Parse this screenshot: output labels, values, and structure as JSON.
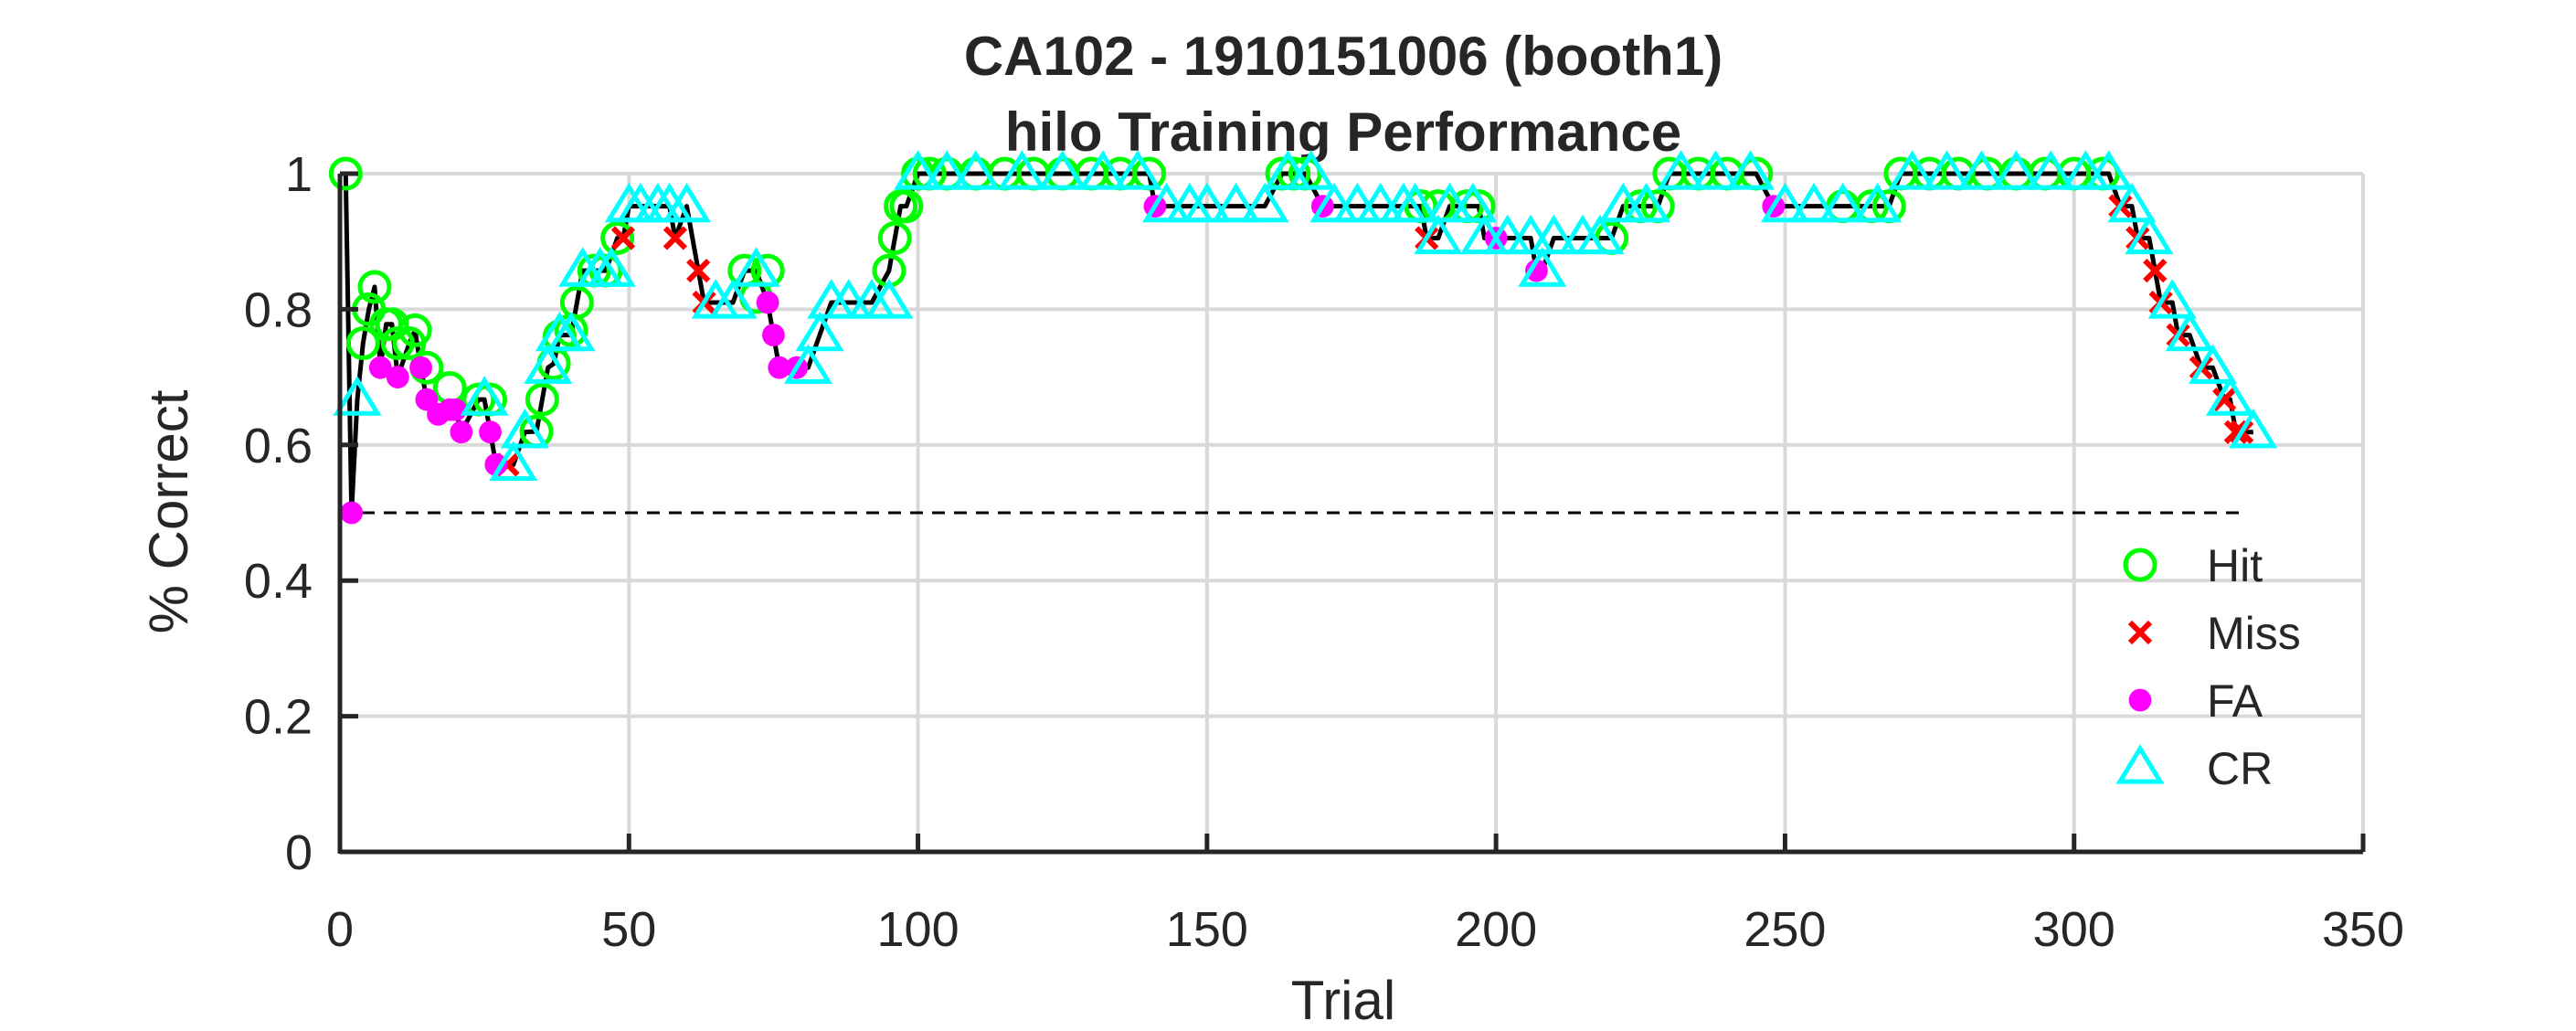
{
  "chart_data": {
    "type": "scatter",
    "title": "CA102 - 1910151006 (booth1)",
    "subtitle": "hilo Training Performance",
    "xlabel": "Trial",
    "ylabel": "% Correct",
    "xlim": [
      0,
      350
    ],
    "ylim": [
      0,
      1
    ],
    "xticks": [
      "0",
      "50",
      "100",
      "150",
      "200",
      "250",
      "300",
      "350"
    ],
    "yticks": [
      "0",
      "0.2",
      "0.4",
      "0.6",
      "0.8",
      "1"
    ],
    "grid": true,
    "legend_position": "lower-right",
    "chance_line": {
      "y": 0.5,
      "x": [
        0,
        330
      ],
      "style": "dashed"
    },
    "series": [
      {
        "name": "Hit",
        "marker": "circle-open",
        "color": "#00ff00",
        "x": [
          1,
          4,
          5,
          6,
          8,
          9,
          10,
          12,
          13,
          15,
          19,
          24,
          26,
          34,
          35,
          37,
          38,
          40,
          41,
          44,
          46,
          48,
          70,
          72,
          74,
          95,
          96,
          97,
          98,
          100,
          102,
          105,
          110,
          115,
          120,
          125,
          130,
          135,
          140,
          163,
          165,
          167,
          187,
          190,
          195,
          197,
          220,
          225,
          228,
          230,
          235,
          240,
          245,
          260,
          265,
          268,
          270,
          275,
          280,
          285,
          290,
          295,
          300,
          305
        ],
        "y": [
          1.0,
          0.75,
          0.8,
          0.833,
          0.778,
          0.778,
          0.75,
          0.75,
          0.769,
          0.714,
          0.684,
          0.667,
          0.667,
          0.62,
          0.667,
          0.72,
          0.76,
          0.769,
          0.81,
          0.857,
          0.857,
          0.905,
          0.857,
          0.818,
          0.857,
          0.857,
          0.905,
          0.952,
          0.952,
          1.0,
          1.0,
          1.0,
          1.0,
          1.0,
          1.0,
          1.0,
          1.0,
          1.0,
          1.0,
          1.0,
          1.0,
          1.0,
          0.952,
          0.952,
          0.952,
          0.952,
          0.905,
          0.952,
          0.952,
          1.0,
          1.0,
          1.0,
          1.0,
          0.952,
          0.952,
          0.952,
          1.0,
          1.0,
          1.0,
          1.0,
          1.0,
          1.0,
          1.0,
          1.0
        ]
      },
      {
        "name": "Miss",
        "marker": "x",
        "color": "#ff0000",
        "x": [
          29,
          49,
          58,
          62,
          63,
          188,
          308,
          311,
          314,
          315,
          318,
          322,
          326,
          328,
          329
        ],
        "y": [
          0.571,
          0.905,
          0.905,
          0.857,
          0.81,
          0.905,
          0.952,
          0.905,
          0.857,
          0.81,
          0.762,
          0.714,
          0.667,
          0.619,
          0.619
        ]
      },
      {
        "name": "FA",
        "marker": "dot",
        "color": "#ff00ff",
        "x": [
          2,
          7,
          10,
          14,
          15,
          17,
          19,
          20,
          21,
          26,
          27,
          74,
          75,
          76,
          79,
          141,
          170,
          200,
          207,
          248
        ],
        "y": [
          0.5,
          0.714,
          0.7,
          0.714,
          0.667,
          0.645,
          0.652,
          0.652,
          0.619,
          0.619,
          0.571,
          0.81,
          0.762,
          0.714,
          0.714,
          0.952,
          0.952,
          0.905,
          0.857,
          0.952
        ]
      },
      {
        "name": "CR",
        "marker": "triangle-open",
        "color": "#00ffff",
        "x": [
          3,
          25,
          30,
          32,
          36,
          38,
          40,
          42,
          45,
          47,
          50,
          52,
          55,
          57,
          60,
          65,
          68,
          72,
          81,
          83,
          85,
          88,
          92,
          95,
          100,
          105,
          110,
          118,
          125,
          132,
          138,
          143,
          147,
          150,
          155,
          160,
          164,
          168,
          172,
          176,
          180,
          184,
          186,
          190,
          192,
          196,
          198,
          202,
          206,
          208,
          210,
          215,
          218,
          222,
          226,
          232,
          238,
          244,
          250,
          255,
          260,
          266,
          272,
          278,
          284,
          290,
          296,
          302,
          306,
          310,
          313,
          317,
          320,
          324,
          327,
          331
        ],
        "y": [
          0.667,
          0.667,
          0.571,
          0.619,
          0.714,
          0.762,
          0.762,
          0.857,
          0.857,
          0.857,
          0.952,
          0.952,
          0.952,
          0.952,
          0.952,
          0.81,
          0.81,
          0.857,
          0.714,
          0.762,
          0.81,
          0.81,
          0.81,
          0.81,
          1.0,
          1.0,
          1.0,
          1.0,
          1.0,
          1.0,
          1.0,
          0.952,
          0.952,
          0.952,
          0.952,
          0.952,
          1.0,
          1.0,
          0.952,
          0.952,
          0.952,
          0.952,
          0.952,
          0.905,
          0.952,
          0.952,
          0.905,
          0.905,
          0.905,
          0.857,
          0.905,
          0.905,
          0.905,
          0.952,
          0.952,
          1.0,
          1.0,
          1.0,
          0.952,
          0.952,
          0.952,
          0.952,
          1.0,
          1.0,
          1.0,
          1.0,
          1.0,
          1.0,
          1.0,
          0.952,
          0.905,
          0.81,
          0.762,
          0.714,
          0.667,
          0.619
        ]
      }
    ],
    "performance_line": {
      "x": [
        1,
        2,
        3,
        4,
        5,
        6,
        7,
        8,
        9,
        10,
        12,
        13,
        14,
        15,
        17,
        19,
        20,
        21,
        24,
        25,
        26,
        27,
        29,
        30,
        32,
        34,
        35,
        36,
        37,
        38,
        40,
        41,
        42,
        44,
        46,
        48,
        49,
        50,
        55,
        57,
        58,
        60,
        62,
        63,
        65,
        68,
        70,
        72,
        74,
        75,
        76,
        79,
        81,
        83,
        85,
        88,
        92,
        95,
        96,
        97,
        98,
        100,
        140,
        141,
        143,
        160,
        163,
        167,
        170,
        172,
        186,
        187,
        188,
        190,
        192,
        196,
        197,
        198,
        200,
        202,
        206,
        207,
        208,
        210,
        218,
        220,
        222,
        226,
        228,
        230,
        244,
        245,
        248,
        250,
        266,
        268,
        270,
        306,
        308,
        310,
        311,
        313,
        314,
        315,
        317,
        318,
        320,
        322,
        324,
        326,
        327,
        328,
        329,
        331
      ],
      "y": [
        1.0,
        0.5,
        0.667,
        0.75,
        0.8,
        0.833,
        0.714,
        0.778,
        0.778,
        0.7,
        0.75,
        0.769,
        0.714,
        0.667,
        0.645,
        0.652,
        0.652,
        0.619,
        0.667,
        0.667,
        0.619,
        0.571,
        0.571,
        0.571,
        0.619,
        0.62,
        0.667,
        0.714,
        0.72,
        0.762,
        0.762,
        0.81,
        0.857,
        0.857,
        0.857,
        0.905,
        0.905,
        0.952,
        0.952,
        0.952,
        0.905,
        0.952,
        0.857,
        0.81,
        0.81,
        0.81,
        0.857,
        0.857,
        0.81,
        0.762,
        0.714,
        0.714,
        0.714,
        0.762,
        0.81,
        0.81,
        0.81,
        0.857,
        0.905,
        0.952,
        0.952,
        1.0,
        1.0,
        0.952,
        0.952,
        0.952,
        1.0,
        1.0,
        0.952,
        0.952,
        0.952,
        0.952,
        0.905,
        0.905,
        0.952,
        0.952,
        0.952,
        0.905,
        0.905,
        0.905,
        0.905,
        0.857,
        0.857,
        0.905,
        0.905,
        0.905,
        0.952,
        0.952,
        0.952,
        1.0,
        1.0,
        1.0,
        0.952,
        0.952,
        0.952,
        0.952,
        1.0,
        1.0,
        0.952,
        0.952,
        0.905,
        0.905,
        0.857,
        0.81,
        0.81,
        0.762,
        0.762,
        0.714,
        0.714,
        0.667,
        0.667,
        0.619,
        0.619,
        0.619
      ]
    }
  }
}
